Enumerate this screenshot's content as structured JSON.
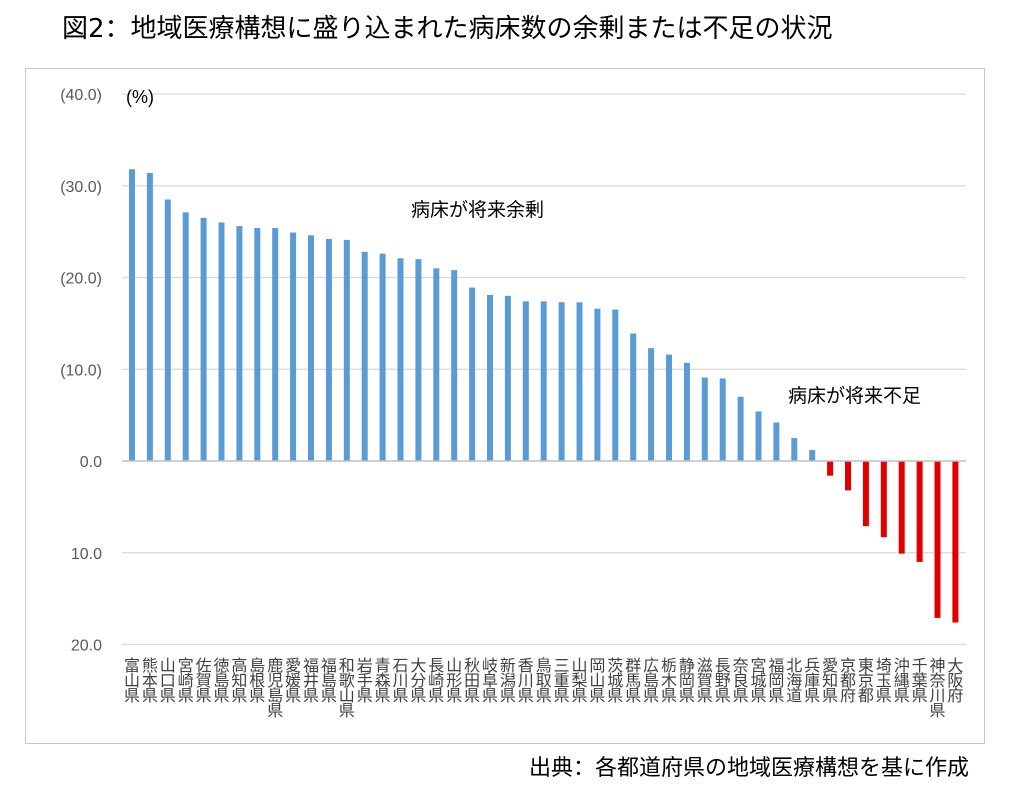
{
  "title": "図2：地域医療構想に盛り込まれた病床数の余剰または不足の状況",
  "source": "出典：各都道府県の地域医療構想を基に作成",
  "chart_data": {
    "type": "bar",
    "unit_label": "(%)",
    "y_ticks": [
      {
        "value": 40,
        "label": "(40.0)"
      },
      {
        "value": 30,
        "label": "(30.0)"
      },
      {
        "value": 20,
        "label": "(20.0)"
      },
      {
        "value": 10,
        "label": "(10.0)"
      },
      {
        "value": 0,
        "label": "0.0"
      },
      {
        "value": -10,
        "label": "10.0"
      },
      {
        "value": -20,
        "label": "20.0"
      }
    ],
    "ylim": [
      -20,
      40
    ],
    "grid": true,
    "annotations": [
      {
        "text": "病床が将来余剰"
      },
      {
        "text": "病床が将来不足"
      }
    ],
    "colors": {
      "surplus": "#5b9bd5",
      "shortage": "#e00000",
      "grid": "#d9d9d9",
      "axis": "#bfbfbf"
    },
    "categories": [
      "富山県",
      "熊本県",
      "山口県",
      "宮崎県",
      "佐賀県",
      "徳島県",
      "高知県",
      "島根県",
      "鹿児島県",
      "愛媛県",
      "福井県",
      "福島県",
      "和歌山県",
      "岩手県",
      "青森県",
      "石川県",
      "大分県",
      "長崎県",
      "山形県",
      "秋田県",
      "岐阜県",
      "新潟県",
      "香川県",
      "鳥取県",
      "三重県",
      "山梨県",
      "岡山県",
      "茨城県",
      "群馬県",
      "広島県",
      "栃木県",
      "静岡県",
      "滋賀県",
      "長野県",
      "奈良県",
      "宮城県",
      "福岡県",
      "北海道",
      "兵庫県",
      "愛知県",
      "京都府",
      "東京都",
      "埼玉県",
      "沖縄県",
      "千葉県",
      "神奈川県",
      "大阪府"
    ],
    "values": [
      31.8,
      31.4,
      28.5,
      27.1,
      26.5,
      26.0,
      25.6,
      25.4,
      25.4,
      24.9,
      24.6,
      24.2,
      24.1,
      22.8,
      22.6,
      22.1,
      22.0,
      21.0,
      20.8,
      18.9,
      18.1,
      18.0,
      17.4,
      17.4,
      17.3,
      17.3,
      16.6,
      16.5,
      13.9,
      12.3,
      11.6,
      10.7,
      9.1,
      9.0,
      7.0,
      5.4,
      4.2,
      2.5,
      1.2,
      -1.6,
      -3.2,
      -7.1,
      -8.3,
      -10.1,
      -11.0,
      -17.1,
      -17.6
    ]
  }
}
